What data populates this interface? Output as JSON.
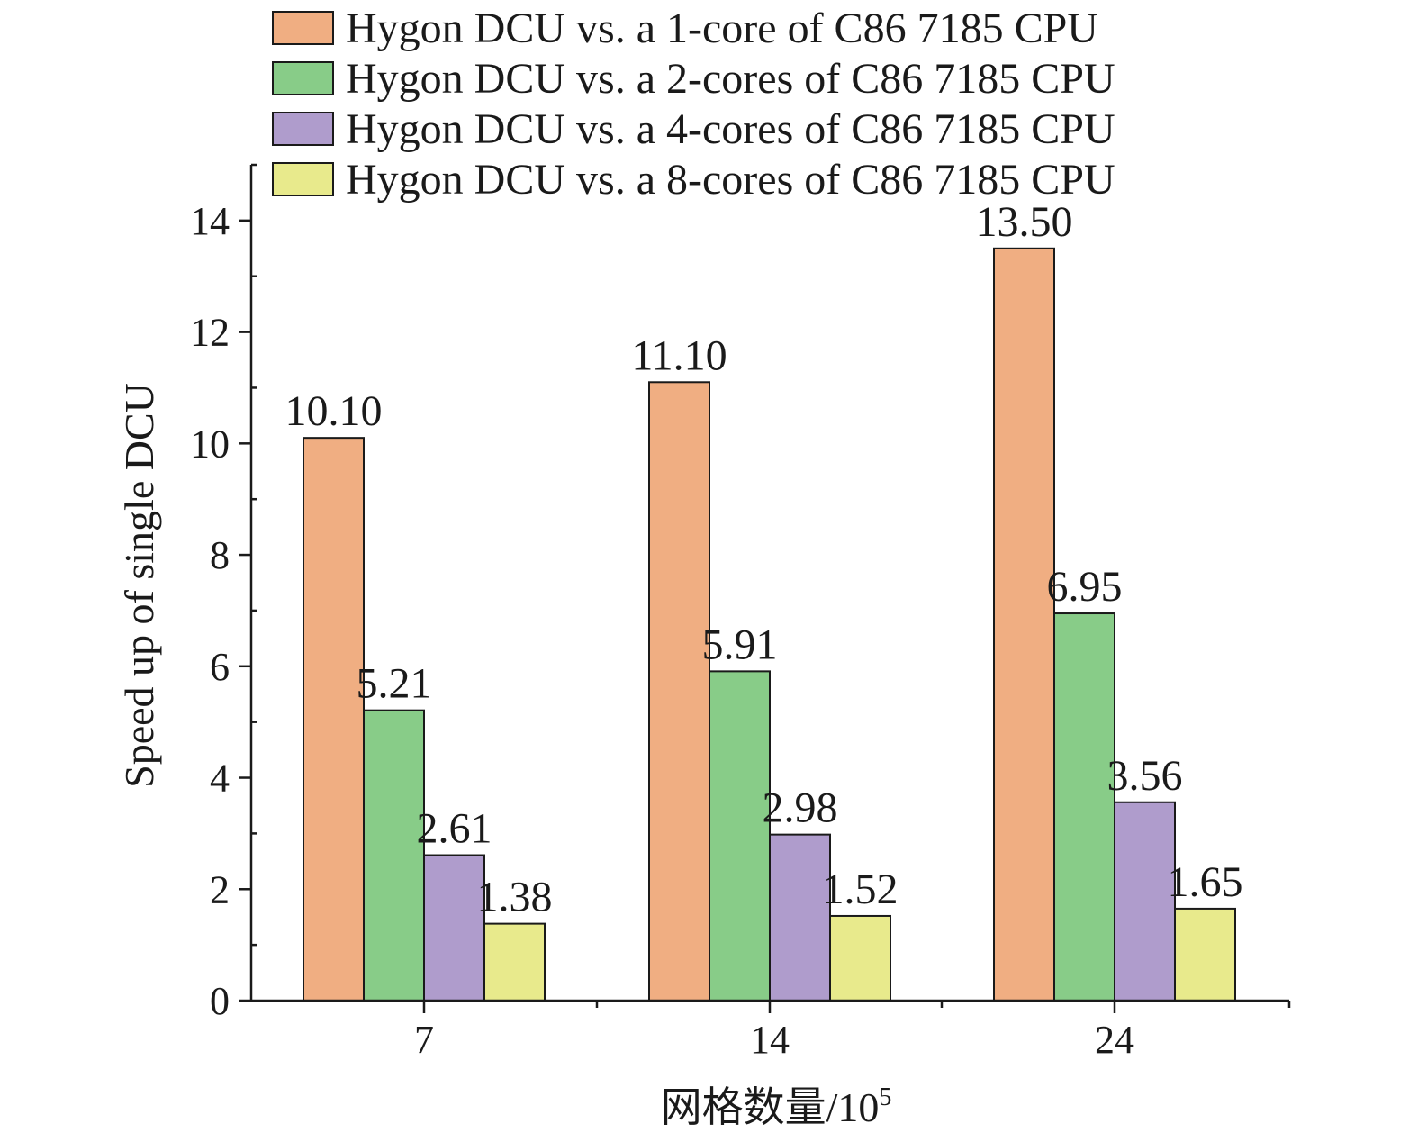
{
  "chart_data": {
    "type": "bar",
    "categories": [
      "7",
      "14",
      "24"
    ],
    "series": [
      {
        "name": "Hygon DCU vs. a 1-core of C86 7185 CPU",
        "color": "#f0ae82",
        "values": [
          10.1,
          11.1,
          13.5
        ],
        "labels": [
          "10.10",
          "11.10",
          "13.50"
        ]
      },
      {
        "name": "Hygon DCU vs. a 2-cores of C86 7185 CPU",
        "color": "#88cc88",
        "values": [
          5.21,
          5.91,
          6.95
        ],
        "labels": [
          "5.21",
          "5.91",
          "6.95"
        ]
      },
      {
        "name": "Hygon DCU vs. a 4-cores of C86 7185 CPU",
        "color": "#af9ccc",
        "values": [
          2.61,
          2.98,
          3.56
        ],
        "labels": [
          "2.61",
          "2.98",
          "3.56"
        ]
      },
      {
        "name": "Hygon DCU vs. a 8-cores of C86 7185 CPU",
        "color": "#e8ea8c",
        "values": [
          1.38,
          1.52,
          1.65
        ],
        "labels": [
          "1.38",
          "1.52",
          "1.65"
        ]
      }
    ],
    "title": "",
    "xlabel": "网格数量/10",
    "xlabel_superscript": "5",
    "ylabel": "Speed up of single DCU",
    "ylim": [
      0,
      15
    ],
    "yticks": [
      0,
      2,
      4,
      6,
      8,
      10,
      12,
      14
    ],
    "ytick_labels": [
      "0",
      "2",
      "4",
      "6",
      "8",
      "10",
      "12",
      "14"
    ],
    "grid": false,
    "legend_position": "top"
  }
}
